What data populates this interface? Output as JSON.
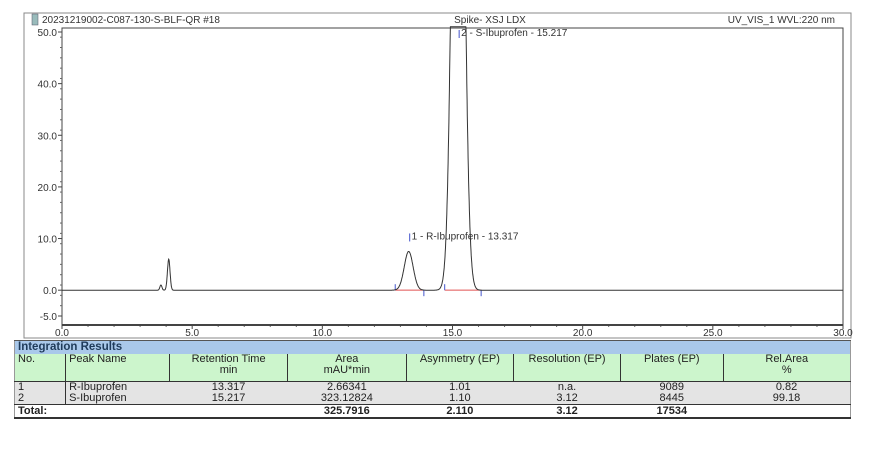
{
  "header": {
    "sample": "20231219002-C087-130-S-BLF-QR #18",
    "method": "Spike- XSJ LDX",
    "channel": "UV_VIS_1 WVL:220 nm"
  },
  "chart_data": {
    "type": "line",
    "title": "",
    "xlabel": "",
    "ylabel": "",
    "xlim": [
      0,
      30
    ],
    "ylim": [
      -5,
      50
    ],
    "x_ticks": [
      "0.0",
      "5.0",
      "10.0",
      "15.0",
      "20.0",
      "25.0",
      "30.0"
    ],
    "y_ticks": [
      "-5.0",
      "0.0",
      "10.0",
      "20.0",
      "30.0",
      "40.0",
      "50.0"
    ],
    "grid": false,
    "peaks": [
      {
        "rt": 3.8,
        "height": 1.0,
        "width": 0.04
      },
      {
        "rt": 4.1,
        "height": 6.0,
        "width": 0.05
      },
      {
        "rt": 13.317,
        "height": 7.5,
        "width": 0.17,
        "label": "1 - R-Ibuprofen - 13.317"
      },
      {
        "rt": 15.217,
        "height": 160,
        "width": 0.2,
        "label": "2 - S-Ibuprofen - 15.217"
      }
    ],
    "baseline_color": "#e05050",
    "trace_color": "#333333"
  },
  "table": {
    "title": "Integration Results",
    "headers": [
      [
        "No.",
        ""
      ],
      [
        "Peak Name",
        ""
      ],
      [
        "Retention Time",
        "min"
      ],
      [
        "Area",
        "mAU*min"
      ],
      [
        "Asymmetry (EP)",
        ""
      ],
      [
        "Resolution (EP)",
        ""
      ],
      [
        "Plates (EP)",
        ""
      ],
      [
        "Rel.Area",
        "%"
      ]
    ],
    "rows": [
      [
        "1",
        "R-Ibuprofen",
        "13.317",
        "2.66341",
        "1.01",
        "n.a.",
        "9089",
        "0.82"
      ],
      [
        "2",
        "S-Ibuprofen",
        "15.217",
        "323.12824",
        "1.10",
        "3.12",
        "8445",
        "99.18"
      ]
    ],
    "total": [
      "Total:",
      "",
      "",
      "325.7916",
      "2.110",
      "3.12",
      "17534",
      ""
    ]
  }
}
